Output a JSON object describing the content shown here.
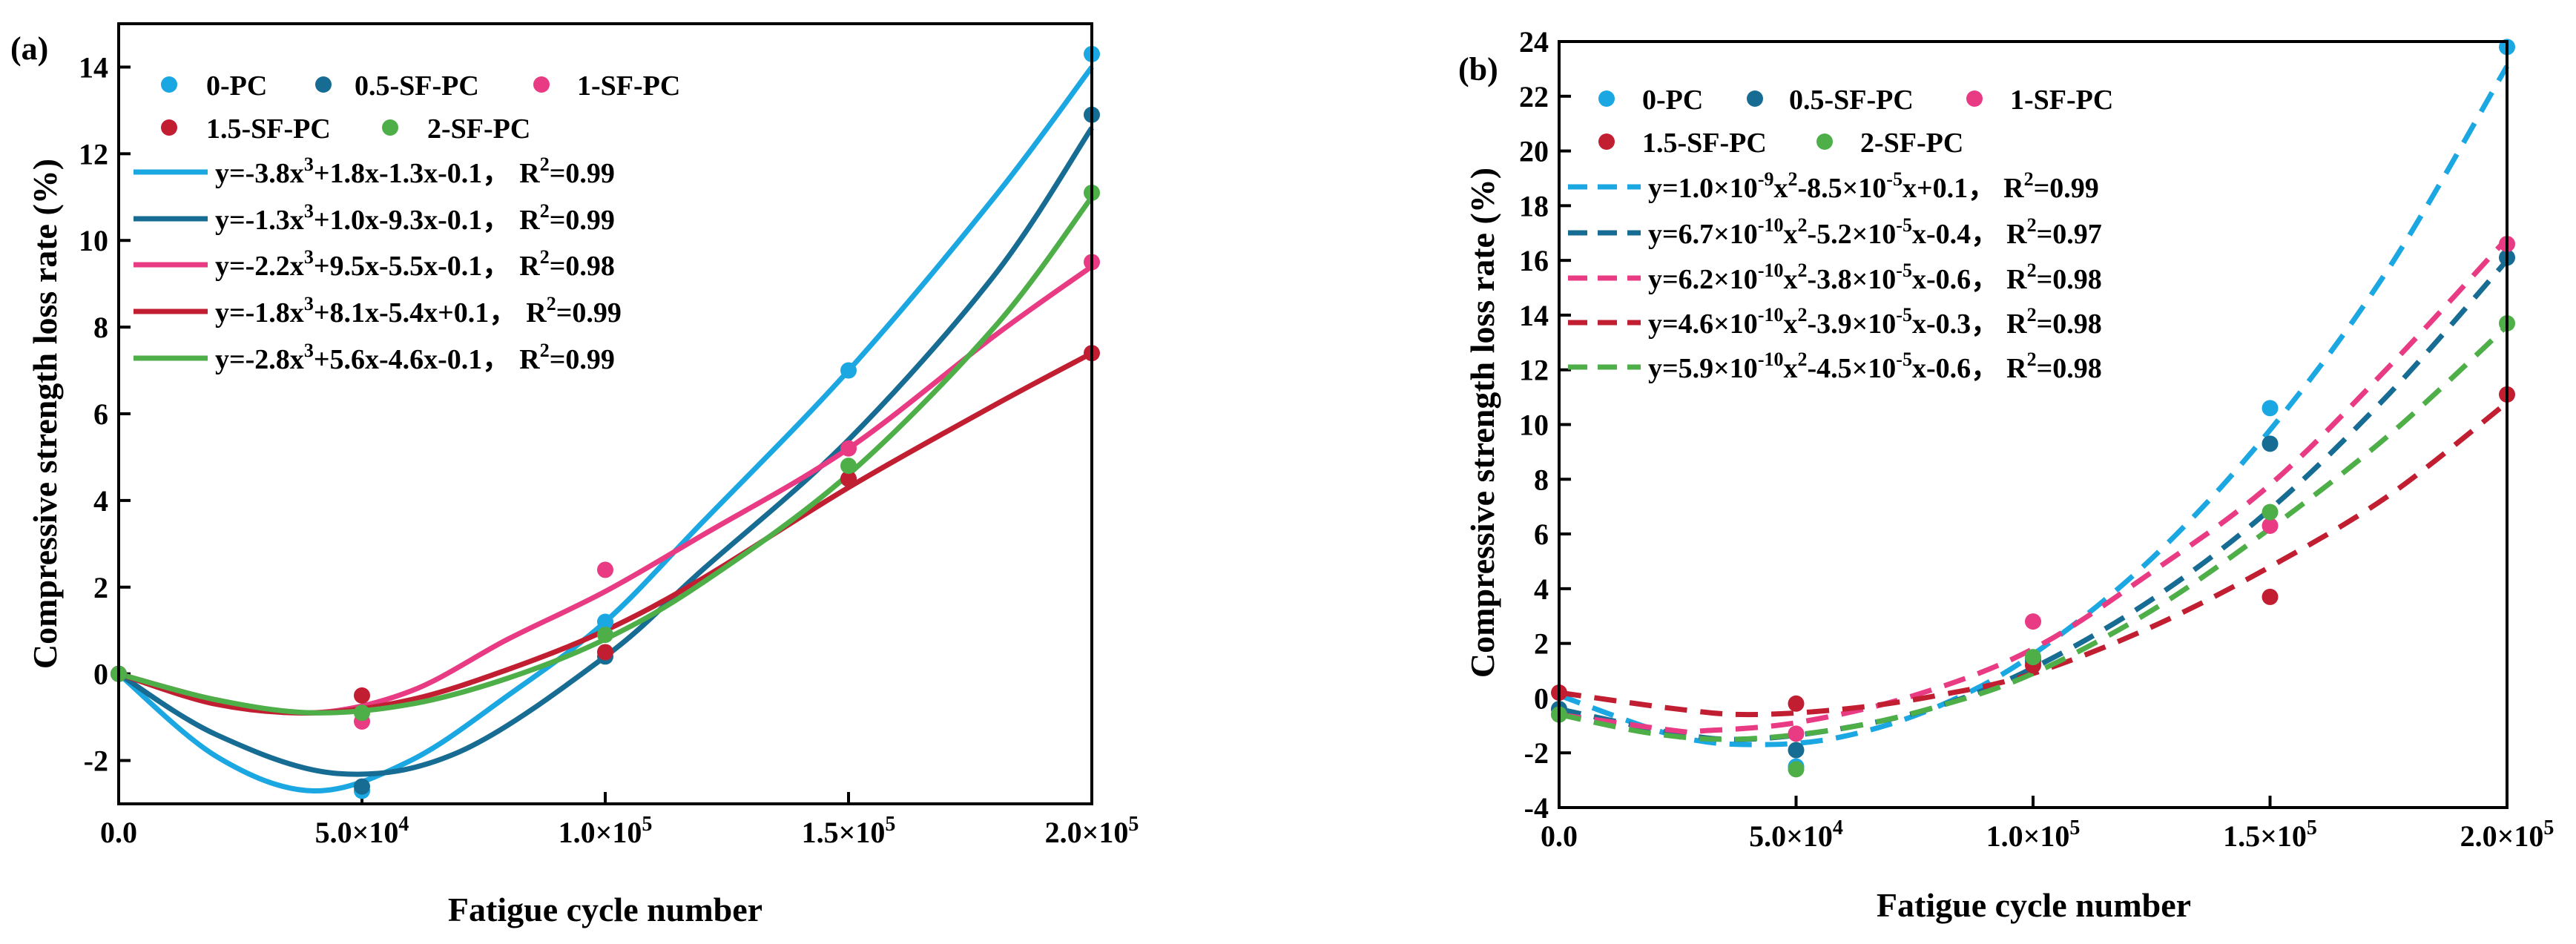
{
  "colors": {
    "0-PC": "#1BA7E2",
    "0.5-SF-PC": "#176C93",
    "1-SF-PC": "#E93B83",
    "1.5-SF-PC": "#C21E32",
    "2-SF-PC": "#4EAE48"
  },
  "chart_data": [
    {
      "panel": "(a)",
      "type": "scatter",
      "curve_style": "solid",
      "xlabel": "Fatigue cycle number",
      "ylabel": "Compressive strength loss rate (%)",
      "xlim": [
        0,
        200000
      ],
      "ylim": [
        -3,
        15
      ],
      "xticks": [
        0,
        50000,
        100000,
        150000,
        200000
      ],
      "xtick_labels": [
        "0.0",
        "5.0×10",
        "1.0×10",
        "1.5×10",
        "2.0×10"
      ],
      "xtick_exps": [
        "",
        "4",
        "5",
        "5",
        "5"
      ],
      "yticks": [
        -2,
        0,
        2,
        4,
        6,
        8,
        10,
        12,
        14
      ],
      "ytick_labels": [
        "-2",
        "0",
        "2",
        "4",
        "6",
        "8",
        "10",
        "12",
        "14"
      ],
      "series": [
        {
          "name": "0-PC",
          "x": [
            0,
            50000,
            100000,
            150000,
            200000
          ],
          "y": [
            0,
            -2.7,
            1.2,
            7.0,
            14.3
          ],
          "fit": [
            [
              0,
              0
            ],
            [
              20000,
              -1.9
            ],
            [
              40000,
              -2.7
            ],
            [
              60000,
              -2.0
            ],
            [
              80000,
              -0.5
            ],
            [
              100000,
              1.2
            ],
            [
              120000,
              3.5
            ],
            [
              150000,
              7.0
            ],
            [
              180000,
              11.0
            ],
            [
              200000,
              14.0
            ]
          ]
        },
        {
          "name": "0.5-SF-PC",
          "x": [
            0,
            50000,
            100000,
            150000,
            200000
          ],
          "y": [
            0,
            -2.6,
            0.4,
            4.5,
            12.9
          ],
          "fit": [
            [
              0,
              0
            ],
            [
              20000,
              -1.4
            ],
            [
              45000,
              -2.3
            ],
            [
              70000,
              -1.8
            ],
            [
              100000,
              0.4
            ],
            [
              120000,
              2.4
            ],
            [
              150000,
              5.4
            ],
            [
              180000,
              9.2
            ],
            [
              200000,
              12.6
            ]
          ]
        },
        {
          "name": "1-SF-PC",
          "x": [
            0,
            50000,
            100000,
            150000,
            200000
          ],
          "y": [
            0,
            -1.1,
            2.4,
            5.2,
            9.5
          ],
          "fit": [
            [
              0,
              0
            ],
            [
              20000,
              -0.6
            ],
            [
              40000,
              -0.9
            ],
            [
              60000,
              -0.4
            ],
            [
              80000,
              0.8
            ],
            [
              100000,
              1.9
            ],
            [
              120000,
              3.2
            ],
            [
              150000,
              5.2
            ],
            [
              180000,
              7.8
            ],
            [
              200000,
              9.4
            ]
          ]
        },
        {
          "name": "1.5-SF-PC",
          "x": [
            0,
            50000,
            100000,
            150000,
            200000
          ],
          "y": [
            0,
            -0.5,
            0.5,
            4.5,
            7.4
          ],
          "fit": [
            [
              0,
              0
            ],
            [
              20000,
              -0.7
            ],
            [
              40000,
              -0.9
            ],
            [
              60000,
              -0.6
            ],
            [
              80000,
              0.1
            ],
            [
              100000,
              1.0
            ],
            [
              120000,
              2.2
            ],
            [
              150000,
              4.3
            ],
            [
              180000,
              6.2
            ],
            [
              200000,
              7.4
            ]
          ]
        },
        {
          "name": "2-SF-PC",
          "x": [
            0,
            50000,
            100000,
            150000,
            200000
          ],
          "y": [
            0,
            -0.9,
            0.9,
            4.8,
            11.1
          ],
          "fit": [
            [
              0,
              0
            ],
            [
              20000,
              -0.6
            ],
            [
              40000,
              -0.9
            ],
            [
              60000,
              -0.7
            ],
            [
              80000,
              -0.1
            ],
            [
              100000,
              0.8
            ],
            [
              120000,
              2.1
            ],
            [
              150000,
              4.6
            ],
            [
              180000,
              8.0
            ],
            [
              200000,
              11.0
            ]
          ]
        }
      ],
      "fit_prefixes": [
        "y=-3.8x",
        "y=-1.3x",
        "y=-2.2x",
        "y=-1.8x",
        "y=-2.8x"
      ],
      "fit_rests": [
        "+1.8x-1.3x-0.1，",
        "+1.0x-9.3x-0.1，",
        "+9.5x-5.5x-0.1，",
        "+8.1x-5.4x+0.1，",
        "+5.6x-4.6x-0.1，"
      ],
      "r2_labels": [
        "=0.99",
        "=0.99",
        "=0.98",
        "=0.99",
        "=0.99"
      ]
    },
    {
      "panel": "(b)",
      "type": "scatter",
      "curve_style": "dashed",
      "xlabel": "Fatigue cycle number",
      "ylabel": "Compressive strength loss rate (%)",
      "xlim": [
        0,
        200000
      ],
      "ylim": [
        -4,
        24
      ],
      "xticks": [
        0,
        50000,
        100000,
        150000,
        200000
      ],
      "xtick_labels": [
        "0.0",
        "5.0×10",
        "1.0×10",
        "1.5×10",
        "2.0×10"
      ],
      "xtick_exps": [
        "",
        "4",
        "5",
        "5",
        "5"
      ],
      "yticks": [
        -4,
        -2,
        0,
        2,
        4,
        6,
        8,
        10,
        12,
        14,
        16,
        18,
        20,
        22,
        24
      ],
      "ytick_labels": [
        "-4",
        "-2",
        "0",
        "2",
        "4",
        "6",
        "8",
        "10",
        "12",
        "14",
        "16",
        "18",
        "20",
        "22",
        "24"
      ],
      "series": [
        {
          "name": "0-PC",
          "x": [
            0,
            50000,
            100000,
            150000,
            200000
          ],
          "y": [
            -0.4,
            -2.5,
            1.3,
            10.6,
            23.8
          ],
          "fit": [
            [
              0,
              0.1
            ],
            [
              25000,
              -1.4
            ],
            [
              42500,
              -1.7
            ],
            [
              60000,
              -1.4
            ],
            [
              80000,
              -0.3
            ],
            [
              100000,
              1.6
            ],
            [
              125000,
              5.1
            ],
            [
              150000,
              9.8
            ],
            [
              175000,
              15.7
            ],
            [
              200000,
              23.1
            ]
          ]
        },
        {
          "name": "0.5-SF-PC",
          "x": [
            0,
            50000,
            100000,
            150000,
            200000
          ],
          "y": [
            -0.4,
            -1.9,
            1.4,
            9.3,
            16.1
          ],
          "fit": [
            [
              0,
              -0.4
            ],
            [
              25000,
              -1.3
            ],
            [
              40000,
              -1.5
            ],
            [
              60000,
              -1.1
            ],
            [
              80000,
              -0.3
            ],
            [
              100000,
              1.1
            ],
            [
              125000,
              3.6
            ],
            [
              150000,
              6.9
            ],
            [
              175000,
              11.1
            ],
            [
              200000,
              16.0
            ]
          ]
        },
        {
          "name": "1-SF-PC",
          "x": [
            0,
            50000,
            100000,
            150000,
            200000
          ],
          "y": [
            -0.6,
            -1.3,
            2.8,
            6.3,
            16.6
          ],
          "fit": [
            [
              0,
              -0.6
            ],
            [
              25000,
              -1.2
            ],
            [
              30000,
              -1.2
            ],
            [
              50000,
              -0.9
            ],
            [
              75000,
              0.1
            ],
            [
              100000,
              1.8
            ],
            [
              125000,
              4.6
            ],
            [
              150000,
              7.8
            ],
            [
              175000,
              12.1
            ],
            [
              200000,
              16.8
            ]
          ]
        },
        {
          "name": "1.5-SF-PC",
          "x": [
            0,
            50000,
            100000,
            150000,
            200000
          ],
          "y": [
            0.2,
            -0.2,
            1.2,
            3.7,
            11.1
          ],
          "fit": [
            [
              0,
              0.2
            ],
            [
              25000,
              -0.4
            ],
            [
              40000,
              -0.6
            ],
            [
              60000,
              -0.4
            ],
            [
              80000,
              0.1
            ],
            [
              100000,
              0.9
            ],
            [
              125000,
              2.6
            ],
            [
              150000,
              4.8
            ],
            [
              175000,
              7.4
            ],
            [
              200000,
              10.8
            ]
          ]
        },
        {
          "name": "2-SF-PC",
          "x": [
            0,
            50000,
            100000,
            150000,
            200000
          ],
          "y": [
            -0.6,
            -2.6,
            1.5,
            6.8,
            13.7
          ],
          "fit": [
            [
              0,
              -0.6
            ],
            [
              20000,
              -1.3
            ],
            [
              38000,
              -1.5
            ],
            [
              60000,
              -1.1
            ],
            [
              80000,
              -0.3
            ],
            [
              100000,
              0.9
            ],
            [
              125000,
              3.2
            ],
            [
              150000,
              6.2
            ],
            [
              175000,
              9.6
            ],
            [
              200000,
              13.6
            ]
          ]
        }
      ],
      "fit_prefixes": [
        "y=1.0×10",
        "y=6.7×10",
        "y=6.2×10",
        "y=4.6×10",
        "y=5.9×10"
      ],
      "fit_exps1": [
        "-9",
        "-10",
        "-10",
        "-10",
        "-10"
      ],
      "fit_mids": [
        "x",
        "x",
        "x",
        "x",
        "x"
      ],
      "fit_mids2": [
        "-8.5×10",
        "-5.2×10",
        "-3.8×10",
        "-3.9×10",
        "-4.5×10"
      ],
      "fit_exps2": [
        "-5",
        "-5",
        "-5",
        "-5",
        "-5"
      ],
      "fit_rests": [
        "x+0.1，",
        "x-0.4，",
        "x-0.6，",
        "x-0.3，",
        "x-0.6，"
      ],
      "r2_labels": [
        "=0.99",
        "=0.97",
        "=0.98",
        "=0.98",
        "=0.98"
      ]
    }
  ]
}
